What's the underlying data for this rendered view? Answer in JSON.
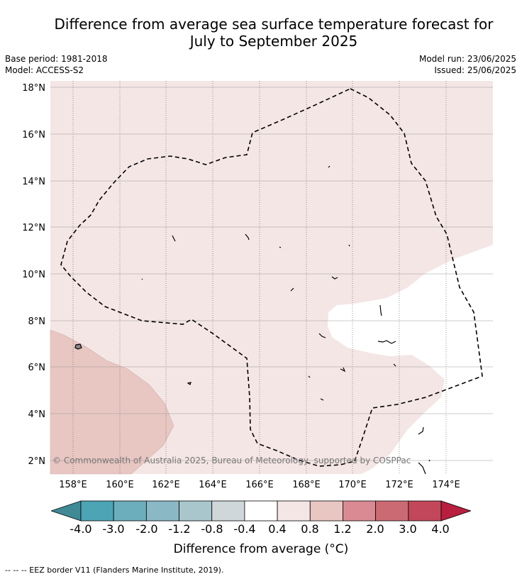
{
  "title_line1": "Difference from average sea surface temperature forecast for",
  "title_line2": "July to September 2025",
  "base_period": "Base period: 1981-2018",
  "model": "Model: ACCESS-S2",
  "model_run": "Model run: 23/06/2025",
  "issued": "Issued: 25/06/2025",
  "copyright": "© Commonwealth of Australia 2025, Bureau of Meteorology, supported by COSPPac",
  "lon_labels": [
    "158°E",
    "160°E",
    "162°E",
    "164°E",
    "166°E",
    "168°E",
    "170°E",
    "172°E",
    "174°E"
  ],
  "lat_labels": [
    "18°N",
    "16°N",
    "14°N",
    "12°N",
    "10°N",
    "8°N",
    "6°N",
    "4°N",
    "2°N"
  ],
  "colorbar": {
    "title": "Difference from average (°C)",
    "tick_labels": [
      "-4.0",
      "-3.0",
      "-2.0",
      "-1.2",
      "-0.8",
      "-0.4",
      "0.4",
      "0.8",
      "1.2",
      "2.0",
      "3.0",
      "4.0"
    ],
    "colors": [
      "#3f8a95",
      "#4ba5b5",
      "#6daebd",
      "#8ab8c5",
      "#a8c6cc",
      "#d0d7da",
      "#ffffff",
      "#f4e6e5",
      "#e8c6c2",
      "#d98a93",
      "#cc6a74",
      "#c2475a",
      "#b81f3e"
    ]
  },
  "footnote": "--  --  -- EEZ border V11 (Flanders Marine Institute, 2019)."
}
